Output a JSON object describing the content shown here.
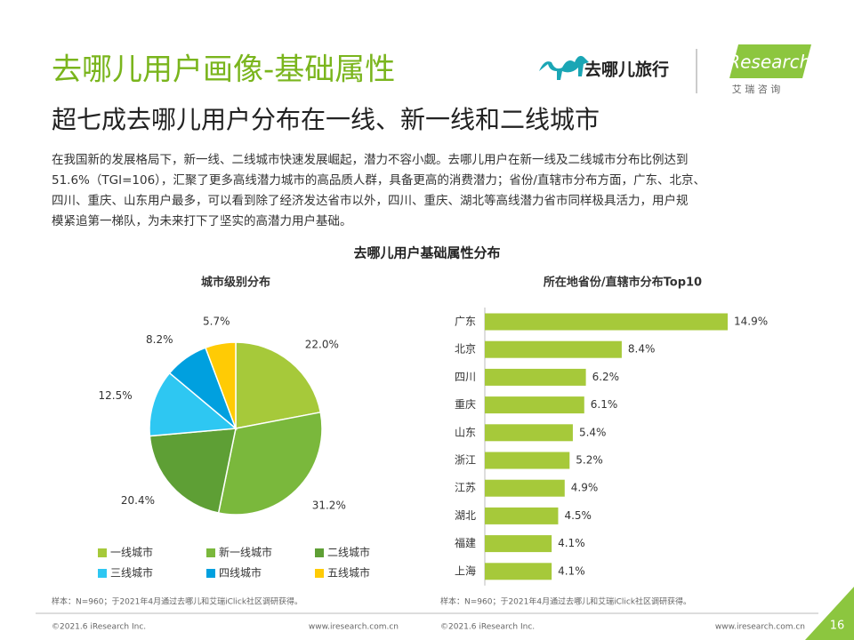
{
  "header": {
    "title": "去哪儿用户画像-基础属性",
    "subtitle": "超七成去哪儿用户分布在一线、新一线和二线城市",
    "brand": "去哪儿旅行",
    "partner": "iResearch",
    "partner_cn": "艾 瑞 咨 询"
  },
  "body": {
    "paragraph": [
      "在我国新的发展格局下，新一线、二线城市快速发展崛起，潜力不容小觑。去哪儿用户在新一线及二线城市分布比例达到",
      "51.6%（TGI=106），汇聚了更多高线潜力城市的高品质人群，具备更高的消费潜力；省份/直辖市分布方面，广东、北京、",
      "四川、重庆、山东用户最多，可以看到除了经济发达省市以外，四川、重庆、湖北等高线潜力省市同样极具活力，用户规",
      "模紧追第一梯队，为未来打下了坚实的高潜力用户基础。"
    ],
    "section_title": "去哪儿用户基础属性分布"
  },
  "chart_data": [
    {
      "type": "pie",
      "title": "城市级别分布",
      "categories": [
        "一线城市",
        "新一线城市",
        "二线城市",
        "三线城市",
        "四线城市",
        "五线城市"
      ],
      "values": [
        22.0,
        31.2,
        20.4,
        12.5,
        8.2,
        5.7
      ],
      "value_labels": [
        "22.0%",
        "31.2%",
        "20.4%",
        "12.5%",
        "8.2%",
        "5.7%"
      ],
      "colors": [
        "#a6c93a",
        "#7ab83c",
        "#5e9f35",
        "#2ec7f2",
        "#00a0df",
        "#ffcb05"
      ],
      "note": "样本：N=960；于2021年4月通过去哪儿和艾瑞iClick社区调研获得。"
    },
    {
      "type": "hbar",
      "title": "所在地省份/直辖市分布Top10",
      "categories": [
        "广东",
        "北京",
        "四川",
        "重庆",
        "山东",
        "浙江",
        "江苏",
        "湖北",
        "福建",
        "上海"
      ],
      "values": [
        14.9,
        8.4,
        6.2,
        6.1,
        5.4,
        5.2,
        4.9,
        4.5,
        4.1,
        4.1
      ],
      "value_labels": [
        "14.9%",
        "8.4%",
        "6.2%",
        "6.1%",
        "5.4%",
        "5.2%",
        "4.9%",
        "4.5%",
        "4.1%",
        "4.1%"
      ],
      "color": "#a6c93a",
      "note": "样本：N=960；于2021年4月通过去哪儿和艾瑞iClick社区调研获得。"
    }
  ],
  "footer": {
    "left_copyright": "©2021.6 iResearch Inc.",
    "left_url": "www.iresearch.com.cn",
    "right_copyright": "©2021.6 iResearch Inc.",
    "right_url": "www.iresearch.com.cn",
    "page": "16"
  }
}
